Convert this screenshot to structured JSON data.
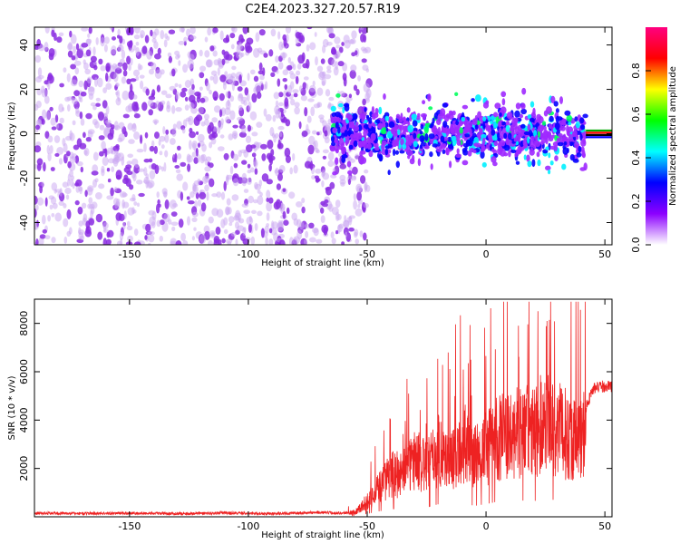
{
  "title": "C2E4.2023.327.20.57.R19",
  "chart_data": [
    {
      "type": "heatmap",
      "xlabel": "Height of straight line (km)",
      "ylabel": "Frequency (Hz)",
      "xlim": [
        -190,
        53
      ],
      "ylim": [
        -50,
        48
      ],
      "x_ticks": [
        -150,
        -100,
        -50,
        0,
        50
      ],
      "y_ticks": [
        -40,
        -20,
        0,
        20,
        40
      ],
      "colorbar": {
        "label": "Normalized spectral amplitude",
        "range": [
          0.0,
          1.0
        ],
        "ticks": [
          0.0,
          0.2,
          0.4,
          0.6,
          0.8
        ],
        "colors": [
          "#ffffff",
          "#8c00ff",
          "#0000ff",
          "#00ffff",
          "#00ff00",
          "#ffff00",
          "#ff0000",
          "#ff0080"
        ]
      },
      "regions": [
        {
          "x": [
            -190,
            -57
          ],
          "freq_band": [
            -50,
            48
          ],
          "amplitude": 0.1,
          "description_values": "broadband noise"
        },
        {
          "x": [
            -65,
            42
          ],
          "freq_band": [
            -15,
            15
          ],
          "amplitude": 0.3
        },
        {
          "x": [
            42,
            53
          ],
          "freq_band": [
            -2,
            2
          ],
          "amplitude": 0.9
        }
      ]
    },
    {
      "type": "line",
      "xlabel": "Height of straight line (km)",
      "ylabel": "SNR (10 * v/v)",
      "xlim": [
        -190,
        53
      ],
      "ylim": [
        0,
        9000
      ],
      "x_ticks": [
        -150,
        -100,
        -50,
        0,
        50
      ],
      "y_ticks": [
        2000,
        4000,
        6000,
        8000
      ],
      "color": "#ee2222",
      "series": [
        {
          "x": [
            -190,
            -170,
            -150,
            -130,
            -110,
            -90,
            -70,
            -60,
            -55,
            -50,
            -45,
            -40,
            -35,
            -30,
            -25,
            -20,
            -15,
            -10,
            -5,
            0,
            5,
            10,
            15,
            20,
            25,
            30,
            35,
            40,
            45,
            50,
            53
          ],
          "values": [
            150,
            140,
            150,
            130,
            160,
            130,
            180,
            150,
            250,
            800,
            1500,
            2200,
            2200,
            3000,
            2500,
            3500,
            2800,
            4000,
            3000,
            3500,
            4200,
            4000,
            4500,
            4300,
            5000,
            4500,
            4200,
            4000,
            5300,
            5400,
            5400
          ]
        }
      ]
    }
  ]
}
